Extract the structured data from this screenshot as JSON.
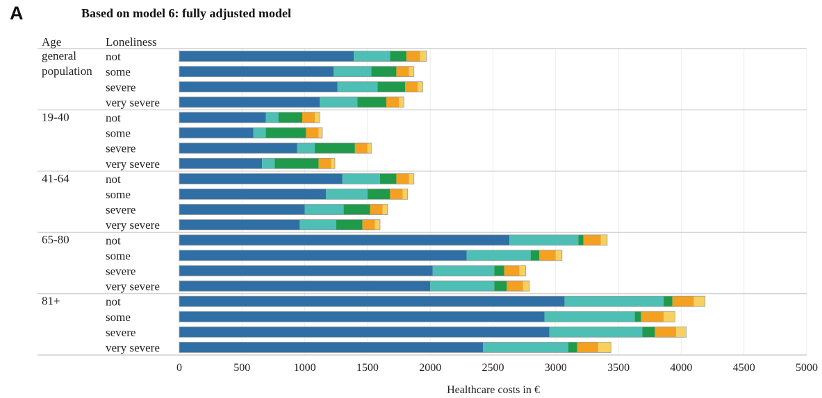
{
  "panel_label": "A",
  "chart_data": {
    "type": "bar",
    "orientation": "horizontal",
    "stacked": true,
    "title": "Based on model 6: fully adjusted model",
    "column_headers": {
      "group": "Age",
      "category": "Loneliness"
    },
    "xlabel": "Healthcare costs in €",
    "xlim": [
      0,
      5000
    ],
    "x_ticks": [
      0,
      500,
      1000,
      1500,
      2000,
      2500,
      3000,
      3500,
      4000,
      4500,
      5000
    ],
    "grid": "vertical",
    "segment_colors": [
      "#2f6fa5",
      "#4dbfb4",
      "#1f9a4a",
      "#f4a020",
      "#f8d060"
    ],
    "groups": [
      {
        "label": "general population",
        "label_lines": [
          "general",
          "population"
        ],
        "rows": [
          {
            "label": "not",
            "values": [
              1390,
              290,
              130,
              110,
              50
            ]
          },
          {
            "label": "some",
            "values": [
              1230,
              300,
              200,
              100,
              40
            ]
          },
          {
            "label": "severe",
            "values": [
              1260,
              320,
              220,
              100,
              40
            ]
          },
          {
            "label": "very severe",
            "values": [
              1120,
              300,
              230,
              100,
              40
            ]
          }
        ]
      },
      {
        "label": "19-40",
        "label_lines": [
          "19-40"
        ],
        "rows": [
          {
            "label": "not",
            "values": [
              690,
              100,
              190,
              100,
              40
            ]
          },
          {
            "label": "some",
            "values": [
              590,
              100,
              320,
              100,
              30
            ]
          },
          {
            "label": "severe",
            "values": [
              940,
              140,
              320,
              100,
              30
            ]
          },
          {
            "label": "very severe",
            "values": [
              660,
              100,
              350,
              100,
              30
            ]
          }
        ]
      },
      {
        "label": "41-64",
        "label_lines": [
          "41-64"
        ],
        "rows": [
          {
            "label": "not",
            "values": [
              1300,
              300,
              130,
              100,
              40
            ]
          },
          {
            "label": "some",
            "values": [
              1170,
              330,
              180,
              100,
              40
            ]
          },
          {
            "label": "severe",
            "values": [
              1000,
              310,
              210,
              100,
              40
            ]
          },
          {
            "label": "very severe",
            "values": [
              960,
              290,
              210,
              100,
              40
            ]
          }
        ]
      },
      {
        "label": "65-80",
        "label_lines": [
          "65-80"
        ],
        "rows": [
          {
            "label": "not",
            "values": [
              2630,
              550,
              40,
              140,
              50
            ]
          },
          {
            "label": "some",
            "values": [
              2290,
              510,
              70,
              130,
              50
            ]
          },
          {
            "label": "severe",
            "values": [
              2020,
              490,
              80,
              120,
              50
            ]
          },
          {
            "label": "very severe",
            "values": [
              2000,
              510,
              100,
              130,
              50
            ]
          }
        ]
      },
      {
        "label": "81+",
        "label_lines": [
          "81+"
        ],
        "rows": [
          {
            "label": "not",
            "values": [
              3070,
              790,
              70,
              170,
              90
            ]
          },
          {
            "label": "some",
            "values": [
              2910,
              720,
              50,
              180,
              90
            ]
          },
          {
            "label": "severe",
            "values": [
              2950,
              740,
              100,
              170,
              80
            ]
          },
          {
            "label": "very severe",
            "values": [
              2420,
              680,
              70,
              170,
              100
            ]
          }
        ]
      }
    ]
  }
}
